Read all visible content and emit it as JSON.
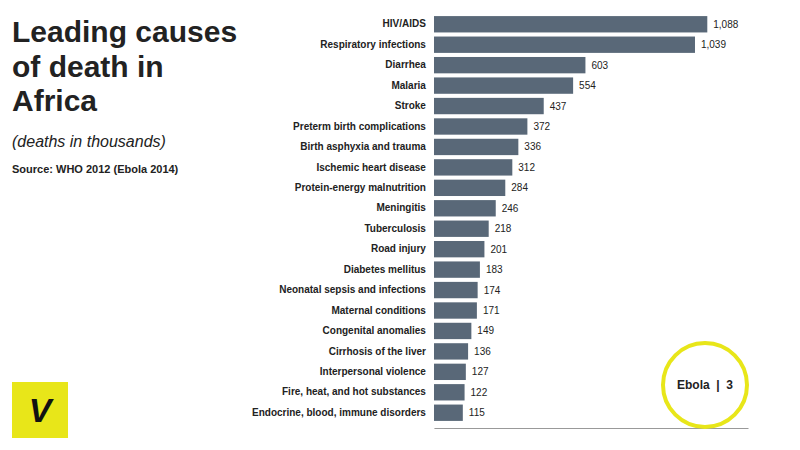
{
  "chart_data": {
    "type": "bar",
    "orientation": "horizontal",
    "title": "Leading causes of death in Africa",
    "subtitle": "(deaths in thousands)",
    "annotations": [
      "Source: WHO 2012 (Ebola 2014)",
      "V",
      "Ebola  |  3"
    ],
    "categories": [
      "HIV/AIDS",
      "Respiratory infections",
      "Diarrhea",
      "Malaria",
      "Stroke",
      "Preterm birth complications",
      "Birth asphyxia and trauma",
      "Ischemic heart disease",
      "Protein-energy malnutrition",
      "Meningitis",
      "Tuberculosis",
      "Road injury",
      "Diabetes mellitus",
      "Neonatal sepsis and infections",
      "Maternal conditions",
      "Congenital anomalies",
      "Cirrhosis of the liver",
      "Interpersonal violence",
      "Fire, heat, and hot substances",
      "Endocrine, blood, immune disorders"
    ],
    "values": [
      1088,
      1039,
      603,
      554,
      437,
      372,
      336,
      312,
      284,
      246,
      218,
      201,
      183,
      174,
      171,
      149,
      136,
      127,
      122,
      115
    ],
    "value_labels": [
      "1,088",
      "1,039",
      "603",
      "554",
      "437",
      "372",
      "336",
      "312",
      "284",
      "246",
      "218",
      "201",
      "183",
      "174",
      "171",
      "149",
      "136",
      "127",
      "122",
      "115"
    ],
    "color": "#596878",
    "xlim": [
      0,
      1250
    ],
    "data_labels": true,
    "tick_labels": "y"
  }
}
